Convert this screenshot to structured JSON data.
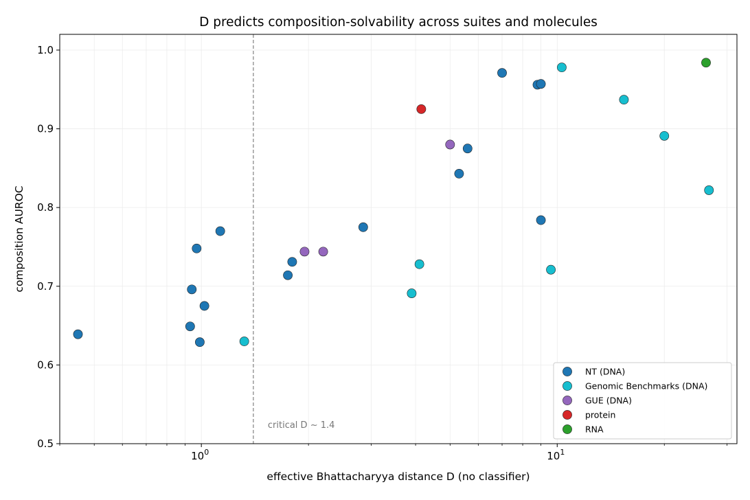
{
  "chart_data": {
    "type": "scatter",
    "title": "D predicts composition-solvability across suites and molecules",
    "xlabel": "effective Bhattacharyya distance D  (no classifier)",
    "ylabel": "composition AUROC",
    "xscale": "log",
    "xlim": [
      0.4,
      32
    ],
    "ylim": [
      0.5,
      1.02
    ],
    "yticks": [
      "0.5",
      "0.6",
      "0.7",
      "0.8",
      "0.9",
      "1.0"
    ],
    "xtick_major_labels": [
      {
        "value": 1,
        "base": "10",
        "exp": "0"
      },
      {
        "value": 10,
        "base": "10",
        "exp": "1"
      }
    ],
    "grid": true,
    "legend_position": "lower-right",
    "reference_line": {
      "x": 1.4,
      "style": "dashed",
      "label": "critical D ~ 1.4"
    },
    "series": [
      {
        "name": "NT (DNA)",
        "color": "#1f77b4",
        "points": [
          [
            0.45,
            0.639
          ],
          [
            0.93,
            0.649
          ],
          [
            0.94,
            0.696
          ],
          [
            0.97,
            0.748
          ],
          [
            0.99,
            0.629
          ],
          [
            1.02,
            0.675
          ],
          [
            1.13,
            0.77
          ],
          [
            1.75,
            0.714
          ],
          [
            1.8,
            0.731
          ],
          [
            2.85,
            0.775
          ],
          [
            5.3,
            0.843
          ],
          [
            5.6,
            0.875
          ],
          [
            7.0,
            0.971
          ],
          [
            8.8,
            0.956
          ],
          [
            9.0,
            0.957
          ],
          [
            9.0,
            0.784
          ]
        ]
      },
      {
        "name": "Genomic Benchmarks (DNA)",
        "color": "#17becf",
        "points": [
          [
            1.32,
            0.63
          ],
          [
            3.9,
            0.691
          ],
          [
            4.1,
            0.728
          ],
          [
            9.6,
            0.721
          ],
          [
            10.3,
            0.978
          ],
          [
            15.4,
            0.937
          ],
          [
            20.0,
            0.891
          ],
          [
            26.7,
            0.822
          ]
        ]
      },
      {
        "name": "GUE (DNA)",
        "color": "#9467bd",
        "points": [
          [
            1.95,
            0.744
          ],
          [
            2.2,
            0.744
          ],
          [
            5.0,
            0.88
          ]
        ]
      },
      {
        "name": "protein",
        "color": "#d62728",
        "points": [
          [
            4.15,
            0.925
          ]
        ]
      },
      {
        "name": "RNA",
        "color": "#2ca02c",
        "points": [
          [
            26.2,
            0.984
          ]
        ]
      }
    ]
  }
}
